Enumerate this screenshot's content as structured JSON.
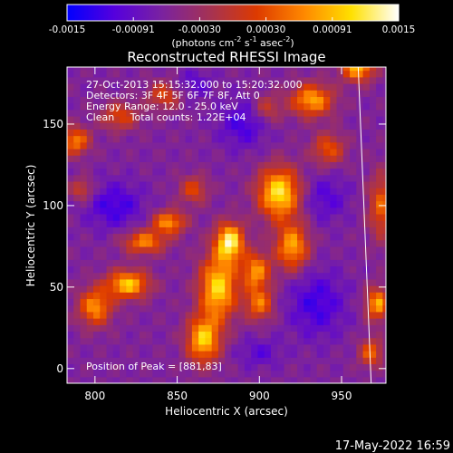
{
  "chart_data": {
    "type": "heatmap",
    "title": "Reconstructed RHESSI Image",
    "xlabel": "Heliocentric X (arcsec)",
    "ylabel": "Heliocentric Y (arcsec)",
    "xlim": [
      783,
      977
    ],
    "ylim": [
      -9,
      185
    ],
    "x_ticks": [
      800,
      850,
      900,
      950
    ],
    "y_ticks": [
      0,
      50,
      100,
      150
    ],
    "grid": false,
    "colorbar": {
      "range": [
        -0.0015,
        0.0015
      ],
      "ticks": [
        "-0.0015",
        "-0.00091",
        "-0.00030",
        "0.00030",
        "0.00091",
        "0.0015"
      ],
      "unit_prefix": "(photons cm",
      "unit_exp1": "-2",
      "unit_mid1": " s",
      "unit_exp2": "-1",
      "unit_mid2": " asec",
      "unit_exp3": "-2",
      "unit_suffix": ")",
      "colormap": [
        "#0000ff",
        "#5500dd",
        "#7a22a0",
        "#a43255",
        "#dd3a00",
        "#ff8800",
        "#ffe000",
        "#ffffff"
      ]
    },
    "annotations": [
      "27-Oct-2013 15:15:32.000 to 15:20:32.000",
      "Detectors: 3F 4F 5F 6F 7F 8F, Att 0",
      "Energy Range: 12.0 - 25.0 keV",
      "Clean     Total counts: 1.22E+04"
    ],
    "peak_label": "Position of Peak = [881,83]",
    "peak": [
      881,
      83
    ],
    "sources": [
      {
        "x": 882,
        "y": 78,
        "sx": 6,
        "sy": 8,
        "a": 1.0
      },
      {
        "x": 875,
        "y": 50,
        "sx": 8,
        "sy": 14,
        "a": 0.9
      },
      {
        "x": 866,
        "y": 18,
        "sx": 7,
        "sy": 10,
        "a": 0.85
      },
      {
        "x": 912,
        "y": 108,
        "sx": 9,
        "sy": 11,
        "a": 0.95
      },
      {
        "x": 920,
        "y": 75,
        "sx": 7,
        "sy": 10,
        "a": 0.75
      },
      {
        "x": 898,
        "y": 60,
        "sx": 6,
        "sy": 8,
        "a": 0.7
      },
      {
        "x": 900,
        "y": 40,
        "sx": 6,
        "sy": 7,
        "a": 0.6
      },
      {
        "x": 932,
        "y": 165,
        "sx": 9,
        "sy": 7,
        "a": 0.75
      },
      {
        "x": 942,
        "y": 135,
        "sx": 7,
        "sy": 7,
        "a": 0.5
      },
      {
        "x": 960,
        "y": 185,
        "sx": 7,
        "sy": 6,
        "a": 0.8
      },
      {
        "x": 975,
        "y": 100,
        "sx": 6,
        "sy": 14,
        "a": 0.55
      },
      {
        "x": 972,
        "y": 40,
        "sx": 5,
        "sy": 7,
        "a": 0.75
      },
      {
        "x": 968,
        "y": 10,
        "sx": 5,
        "sy": 6,
        "a": 0.55
      },
      {
        "x": 845,
        "y": 90,
        "sx": 7,
        "sy": 5,
        "a": 0.7
      },
      {
        "x": 830,
        "y": 78,
        "sx": 9,
        "sy": 5,
        "a": 0.65
      },
      {
        "x": 820,
        "y": 52,
        "sx": 9,
        "sy": 6,
        "a": 0.85
      },
      {
        "x": 800,
        "y": 38,
        "sx": 7,
        "sy": 8,
        "a": 0.7
      },
      {
        "x": 788,
        "y": 140,
        "sx": 6,
        "sy": 6,
        "a": 0.65
      },
      {
        "x": 815,
        "y": 155,
        "sx": 8,
        "sy": 6,
        "a": 0.45
      },
      {
        "x": 842,
        "y": 168,
        "sx": 7,
        "sy": 6,
        "a": 0.45
      },
      {
        "x": 860,
        "y": 110,
        "sx": 6,
        "sy": 6,
        "a": 0.45
      },
      {
        "x": 905,
        "y": 160,
        "sx": 6,
        "sy": 6,
        "a": 0.35
      },
      {
        "x": 792,
        "y": 110,
        "sx": 5,
        "sy": 5,
        "a": 0.4
      }
    ],
    "negatives": [
      {
        "x": 812,
        "y": 100,
        "sx": 12,
        "sy": 10,
        "a": 0.6
      },
      {
        "x": 890,
        "y": 150,
        "sx": 10,
        "sy": 10,
        "a": 0.55
      },
      {
        "x": 935,
        "y": 40,
        "sx": 12,
        "sy": 14,
        "a": 0.6
      },
      {
        "x": 940,
        "y": 105,
        "sx": 10,
        "sy": 10,
        "a": 0.45
      },
      {
        "x": 900,
        "y": 10,
        "sx": 9,
        "sy": 6,
        "a": 0.4
      },
      {
        "x": 860,
        "y": 175,
        "sx": 8,
        "sy": 6,
        "a": 0.4
      }
    ],
    "limb": {
      "x_top": 960,
      "y_top": 185,
      "x_bottom": 968,
      "y_bottom": -9
    }
  },
  "footer": {
    "date": "17-May-2022 16:59"
  }
}
